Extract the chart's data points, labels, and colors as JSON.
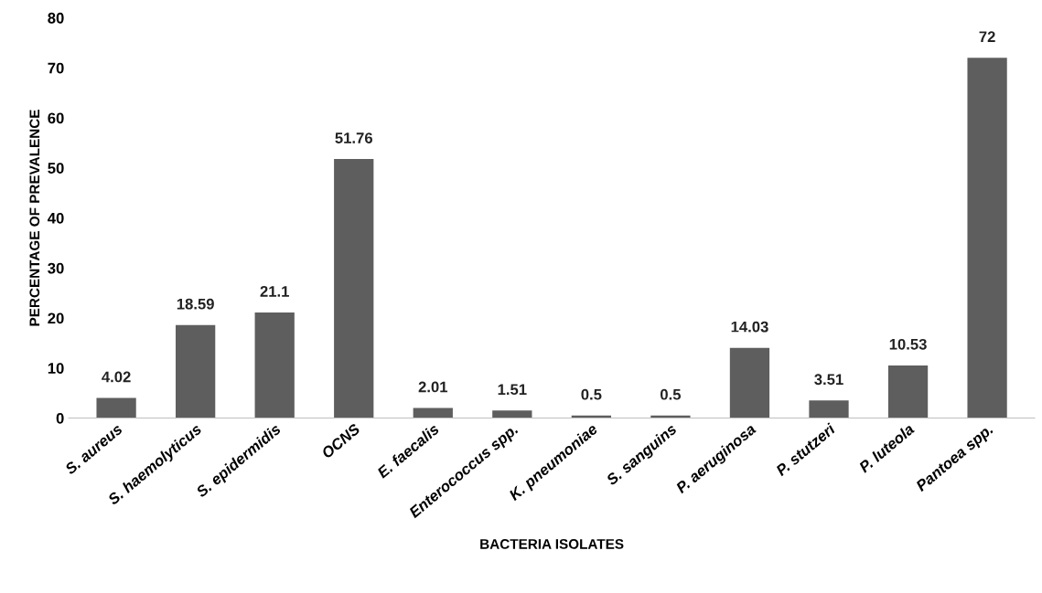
{
  "chart_data": {
    "type": "bar",
    "xlabel": "BACTERIA ISOLATES",
    "ylabel": "PERCENTAGE OF PREVALENCE",
    "categories": [
      "S. aureus",
      "S. haemolyticus",
      "S. epidermidis",
      "OCNS",
      "E. faecalis",
      "Enterococcus spp.",
      "K. pneumoniae",
      "S. sanguins",
      "P. aeruginosa",
      "P. stutzeri",
      "P. luteola",
      "Pantoea spp."
    ],
    "values": [
      4.02,
      18.59,
      21.1,
      51.76,
      2.01,
      1.51,
      0.5,
      0.5,
      14.03,
      3.51,
      10.53,
      72
    ],
    "color": "#5e5e5e",
    "ylim": [
      0,
      80
    ],
    "yticks": [
      0,
      10,
      20,
      30,
      40,
      50,
      60,
      70,
      80
    ],
    "grid": false,
    "legend": false,
    "data_labels": true
  }
}
